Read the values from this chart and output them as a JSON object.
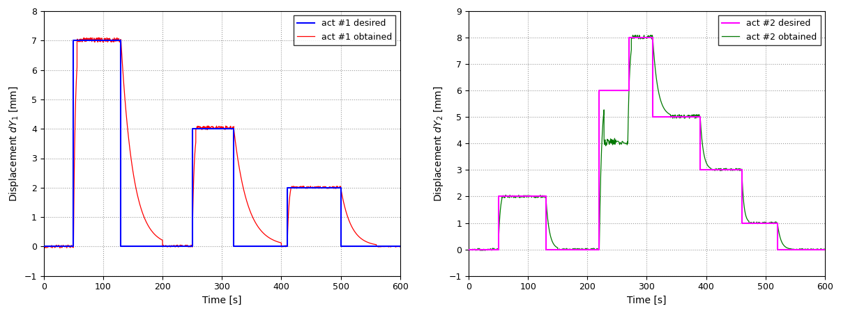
{
  "left": {
    "xlabel": "Time [s]",
    "ylabel": "Displacement $dY_1$ [mm]",
    "xlim": [
      0,
      600
    ],
    "ylim": [
      -1,
      8
    ],
    "yticks": [
      -1,
      0,
      1,
      2,
      3,
      4,
      5,
      6,
      7,
      8
    ],
    "xticks": [
      0,
      100,
      200,
      300,
      400,
      500,
      600
    ],
    "desired_color": "#0000ff",
    "obtained_color": "#ff0000",
    "desired_label": "act #1 desired",
    "obtained_label": "act #1 obtained",
    "desired_steps": [
      [
        0,
        0
      ],
      [
        50,
        0
      ],
      [
        50,
        7
      ],
      [
        130,
        7
      ],
      [
        130,
        0
      ],
      [
        200,
        0
      ],
      [
        250,
        0
      ],
      [
        250,
        4
      ],
      [
        320,
        4
      ],
      [
        320,
        0
      ],
      [
        400,
        0
      ],
      [
        410,
        0
      ],
      [
        410,
        2
      ],
      [
        500,
        2
      ],
      [
        500,
        0
      ],
      [
        600,
        0
      ]
    ]
  },
  "right": {
    "xlabel": "Time [s]",
    "ylabel": "Displacement $dY_2$ [mm]",
    "xlim": [
      0,
      600
    ],
    "ylim": [
      -1,
      9
    ],
    "yticks": [
      -1,
      0,
      1,
      2,
      3,
      4,
      5,
      6,
      7,
      8,
      9
    ],
    "xticks": [
      0,
      100,
      200,
      300,
      400,
      500,
      600
    ],
    "desired_color": "#ff00ff",
    "obtained_color": "#007700",
    "desired_label": "act #2 desired",
    "obtained_label": "act #2 obtained",
    "desired_steps": [
      [
        0,
        0
      ],
      [
        50,
        0
      ],
      [
        50,
        2
      ],
      [
        130,
        2
      ],
      [
        130,
        0
      ],
      [
        220,
        0
      ],
      [
        220,
        6
      ],
      [
        270,
        6
      ],
      [
        270,
        8
      ],
      [
        310,
        8
      ],
      [
        310,
        5
      ],
      [
        390,
        5
      ],
      [
        390,
        3
      ],
      [
        460,
        3
      ],
      [
        460,
        1
      ],
      [
        520,
        1
      ],
      [
        520,
        0
      ],
      [
        600,
        0
      ]
    ]
  },
  "fig_background": "#ffffff",
  "axes_background": "#ffffff",
  "grid_color": "#999999",
  "grid_linestyle": ":",
  "grid_linewidth": 0.8
}
